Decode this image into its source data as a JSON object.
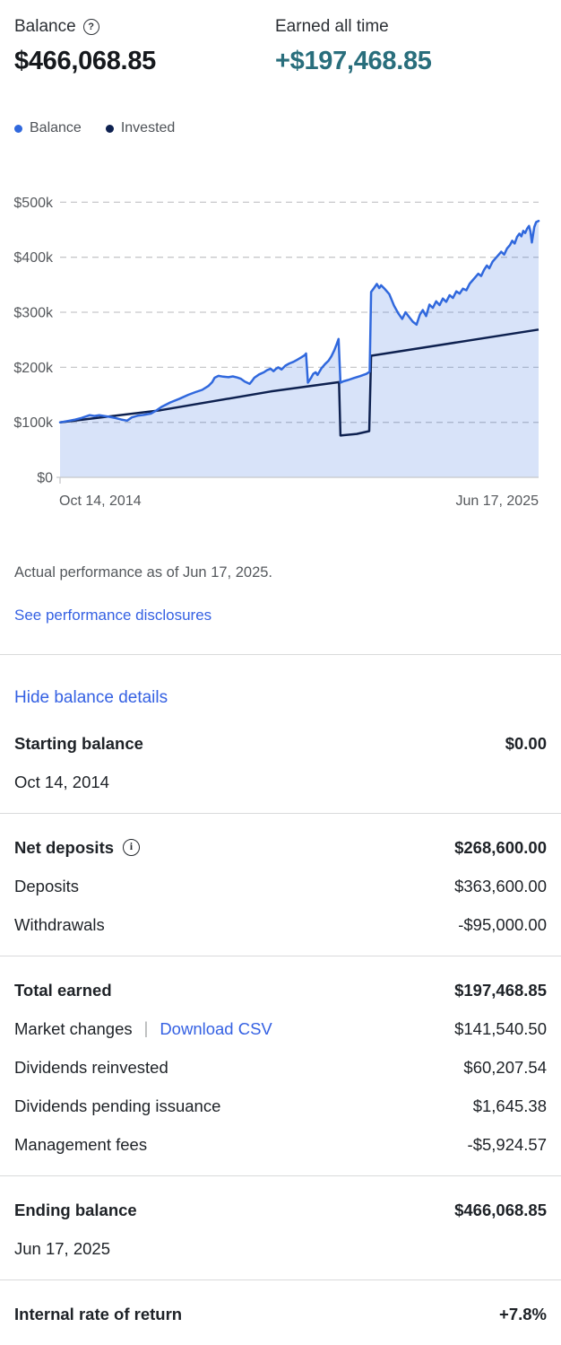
{
  "header": {
    "balance_label": "Balance",
    "balance_value": "$466,068.85",
    "earned_label": "Earned all time",
    "earned_value": "+$197,468.85"
  },
  "legend": [
    {
      "label": "Balance",
      "color": "#3068dd"
    },
    {
      "label": "Invested",
      "color": "#0e2150"
    }
  ],
  "chart_data": {
    "type": "area",
    "title": "Balance over time",
    "xlabel": "",
    "ylabel": "",
    "units": "USD thousands",
    "ylim": [
      0,
      500
    ],
    "y_tick_labels": [
      "$0",
      "$100k",
      "$200k",
      "$300k",
      "$400k",
      "$500k"
    ],
    "x_axis_labels": [
      "Oct 14, 2014",
      "Jun 17, 2025"
    ],
    "grid": "dashed-horizontal",
    "legend_position": "top-left",
    "series": [
      {
        "name": "Balance",
        "color": "#3068dd",
        "fill": "rgba(48,104,221,0.19)",
        "points": [
          [
            0.0,
            100.0
          ],
          [
            0.01,
            101.5
          ],
          [
            0.02,
            103.0
          ],
          [
            0.032,
            105.0
          ],
          [
            0.045,
            108.0
          ],
          [
            0.062,
            113.0
          ],
          [
            0.072,
            111.5
          ],
          [
            0.082,
            113.0
          ],
          [
            0.092,
            111.5
          ],
          [
            0.103,
            110.0
          ],
          [
            0.115,
            108.0
          ],
          [
            0.128,
            105.0
          ],
          [
            0.14,
            103.0
          ],
          [
            0.15,
            109.0
          ],
          [
            0.162,
            112.0
          ],
          [
            0.175,
            113.5
          ],
          [
            0.19,
            116.0
          ],
          [
            0.202,
            122.0
          ],
          [
            0.212,
            128.0
          ],
          [
            0.23,
            136.0
          ],
          [
            0.25,
            143.0
          ],
          [
            0.268,
            150.0
          ],
          [
            0.283,
            155.0
          ],
          [
            0.297,
            159.0
          ],
          [
            0.31,
            166.0
          ],
          [
            0.318,
            173.0
          ],
          [
            0.323,
            181.0
          ],
          [
            0.331,
            184.5
          ],
          [
            0.341,
            183.0
          ],
          [
            0.352,
            182.0
          ],
          [
            0.361,
            183.5
          ],
          [
            0.37,
            181.5
          ],
          [
            0.378,
            179.0
          ],
          [
            0.386,
            174.0
          ],
          [
            0.396,
            170.0
          ],
          [
            0.401,
            175.0
          ],
          [
            0.406,
            181.0
          ],
          [
            0.416,
            187.0
          ],
          [
            0.426,
            191.0
          ],
          [
            0.433,
            195.0
          ],
          [
            0.44,
            197.5
          ],
          [
            0.446,
            193.0
          ],
          [
            0.451,
            197.0
          ],
          [
            0.456,
            200.0
          ],
          [
            0.463,
            196.0
          ],
          [
            0.471,
            203.0
          ],
          [
            0.479,
            207.0
          ],
          [
            0.488,
            210.0
          ],
          [
            0.496,
            214.0
          ],
          [
            0.504,
            218.0
          ],
          [
            0.511,
            222.0
          ],
          [
            0.514,
            225.0
          ],
          [
            0.518,
            172.0
          ],
          [
            0.524,
            180.0
          ],
          [
            0.529,
            188.0
          ],
          [
            0.534,
            191.0
          ],
          [
            0.538,
            186.0
          ],
          [
            0.546,
            198.0
          ],
          [
            0.554,
            206.0
          ],
          [
            0.561,
            212.0
          ],
          [
            0.567,
            220.0
          ],
          [
            0.573,
            231.0
          ],
          [
            0.578,
            242.0
          ],
          [
            0.582,
            251.5
          ],
          [
            0.586,
            172.0
          ],
          [
            0.592,
            174.5
          ],
          [
            0.602,
            177.0
          ],
          [
            0.614,
            180.5
          ],
          [
            0.627,
            184.0
          ],
          [
            0.64,
            188.0
          ],
          [
            0.647,
            192.0
          ],
          [
            0.65,
            337.0
          ],
          [
            0.656,
            344.0
          ],
          [
            0.662,
            351.5
          ],
          [
            0.667,
            344.0
          ],
          [
            0.671,
            349.0
          ],
          [
            0.679,
            342.0
          ],
          [
            0.688,
            333.0
          ],
          [
            0.698,
            312.0
          ],
          [
            0.707,
            298.0
          ],
          [
            0.715,
            288.0
          ],
          [
            0.722,
            300.0
          ],
          [
            0.73,
            291.0
          ],
          [
            0.737,
            283.0
          ],
          [
            0.745,
            277.5
          ],
          [
            0.752,
            296.0
          ],
          [
            0.758,
            304.0
          ],
          [
            0.765,
            293.0
          ],
          [
            0.772,
            314.0
          ],
          [
            0.779,
            308.0
          ],
          [
            0.786,
            320.0
          ],
          [
            0.793,
            313.0
          ],
          [
            0.8,
            325.0
          ],
          [
            0.807,
            319.0
          ],
          [
            0.814,
            331.0
          ],
          [
            0.821,
            326.0
          ],
          [
            0.828,
            338.0
          ],
          [
            0.835,
            334.0
          ],
          [
            0.842,
            343.0
          ],
          [
            0.849,
            340.0
          ],
          [
            0.856,
            352.0
          ],
          [
            0.862,
            358.0
          ],
          [
            0.868,
            364.0
          ],
          [
            0.874,
            370.0
          ],
          [
            0.88,
            366.0
          ],
          [
            0.886,
            377.0
          ],
          [
            0.892,
            385.0
          ],
          [
            0.897,
            380.0
          ],
          [
            0.904,
            392.0
          ],
          [
            0.91,
            398.0
          ],
          [
            0.916,
            404.0
          ],
          [
            0.922,
            410.0
          ],
          [
            0.928,
            405.0
          ],
          [
            0.934,
            416.0
          ],
          [
            0.94,
            422.0
          ],
          [
            0.945,
            430.0
          ],
          [
            0.95,
            425.0
          ],
          [
            0.955,
            437.0
          ],
          [
            0.96,
            443.0
          ],
          [
            0.964,
            438.0
          ],
          [
            0.968,
            448.0
          ],
          [
            0.972,
            444.0
          ],
          [
            0.976,
            452.0
          ],
          [
            0.98,
            457.0
          ],
          [
            0.983,
            447.0
          ],
          [
            0.986,
            427.0
          ],
          [
            0.991,
            455.0
          ],
          [
            0.995,
            464.0
          ],
          [
            1.0,
            466.1
          ]
        ]
      },
      {
        "name": "Invested",
        "color": "#0e2150",
        "points": [
          [
            0.0,
            100.0
          ],
          [
            0.21,
            122.0
          ],
          [
            0.44,
            156.0
          ],
          [
            0.583,
            173.0
          ],
          [
            0.586,
            76.0
          ],
          [
            0.62,
            79.0
          ],
          [
            0.646,
            84.0
          ],
          [
            0.65,
            221.0
          ],
          [
            1.0,
            268.6
          ]
        ]
      }
    ]
  },
  "chart_footer": {
    "caption": "Actual performance as of Jun 17, 2025.",
    "disclosures_link": "See performance disclosures"
  },
  "details": {
    "toggle_link": "Hide balance details",
    "sections": [
      {
        "rows": [
          {
            "label": "Starting balance",
            "value": "$0.00",
            "bold": true,
            "sub": "Oct 14, 2014"
          }
        ]
      },
      {
        "rows": [
          {
            "label": "Net deposits",
            "value": "$268,600.00",
            "bold": true,
            "info": true
          },
          {
            "label": "Deposits",
            "value": "$363,600.00"
          },
          {
            "label": "Withdrawals",
            "value": "-$95,000.00"
          }
        ]
      },
      {
        "rows": [
          {
            "label": "Total earned",
            "value": "$197,468.85",
            "bold": true
          },
          {
            "label": "Market changes",
            "value": "$141,540.50",
            "link": "Download CSV"
          },
          {
            "label": "Dividends reinvested",
            "value": "$60,207.54"
          },
          {
            "label": "Dividends pending issuance",
            "value": "$1,645.38"
          },
          {
            "label": "Management fees",
            "value": "-$5,924.57"
          }
        ]
      },
      {
        "rows": [
          {
            "label": "Ending balance",
            "value": "$466,068.85",
            "bold": true,
            "sub": "Jun 17, 2025"
          }
        ]
      },
      {
        "rows": [
          {
            "label": "Internal rate of return",
            "value": "+7.8%",
            "bold": true,
            "value_teal": true
          }
        ]
      }
    ]
  },
  "colors": {
    "balance_line": "#3068dd",
    "balance_fill": "rgba(48,104,221,0.19)",
    "invested_line": "#0e2150",
    "earned_teal": "#296e7c",
    "link_blue": "#3561e3",
    "axis_text": "#55585c",
    "divider": "#d9dadb"
  },
  "icons": {
    "help": "?",
    "info": "i"
  }
}
